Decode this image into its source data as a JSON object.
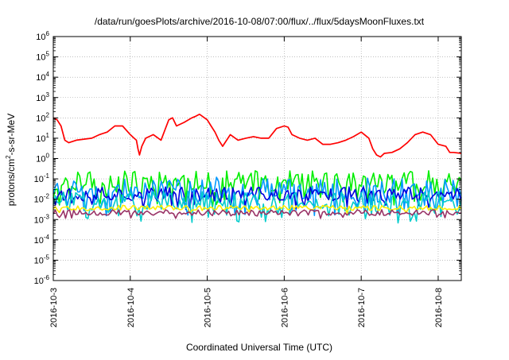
{
  "chart_data": {
    "type": "line",
    "title": "/data/run/goesPlots/archive/2016-10-08/07:00/flux/../flux/5daysMoonFluxes.txt",
    "xlabel": "Coordinated Universal Time (UTC)",
    "ylabel": {
      "base": "protons/cm",
      "sup": "2",
      "rest": "-s-sr-MeV"
    },
    "yscale": "log",
    "ylim_exp": [
      -6,
      6
    ],
    "yticks": [
      {
        "base": "10",
        "exp": "6"
      },
      {
        "base": "10",
        "exp": "5"
      },
      {
        "base": "10",
        "exp": "4"
      },
      {
        "base": "10",
        "exp": "3"
      },
      {
        "base": "10",
        "exp": "2"
      },
      {
        "base": "10",
        "exp": "1"
      },
      {
        "base": "10",
        "exp": "0"
      },
      {
        "base": "10",
        "exp": "-1"
      },
      {
        "base": "10",
        "exp": "-2"
      },
      {
        "base": "10",
        "exp": "-3"
      },
      {
        "base": "10",
        "exp": "-4"
      },
      {
        "base": "10",
        "exp": "-5"
      },
      {
        "base": "10",
        "exp": "-6"
      }
    ],
    "xlim_days": [
      0,
      5.3
    ],
    "xticks": [
      {
        "t": 0,
        "label": "2016-10-3"
      },
      {
        "t": 1,
        "label": "2016-10-4"
      },
      {
        "t": 2,
        "label": "2016-10-5"
      },
      {
        "t": 3,
        "label": "2016-10-6"
      },
      {
        "t": 4,
        "label": "2016-10-7"
      },
      {
        "t": 5,
        "label": "2016-10-8"
      }
    ],
    "grid": true,
    "series": [
      {
        "color": "#ff0000",
        "points": [
          [
            0.0,
            100
          ],
          [
            0.05,
            80
          ],
          [
            0.1,
            40
          ],
          [
            0.15,
            8
          ],
          [
            0.2,
            6
          ],
          [
            0.3,
            8
          ],
          [
            0.4,
            9
          ],
          [
            0.5,
            10
          ],
          [
            0.6,
            15
          ],
          [
            0.7,
            20
          ],
          [
            0.8,
            40
          ],
          [
            0.9,
            40
          ],
          [
            1.0,
            15
          ],
          [
            1.05,
            10
          ],
          [
            1.08,
            8
          ],
          [
            1.1,
            3
          ],
          [
            1.12,
            1.5
          ],
          [
            1.15,
            4
          ],
          [
            1.2,
            10
          ],
          [
            1.3,
            15
          ],
          [
            1.4,
            8
          ],
          [
            1.45,
            25
          ],
          [
            1.5,
            80
          ],
          [
            1.55,
            100
          ],
          [
            1.6,
            40
          ],
          [
            1.7,
            60
          ],
          [
            1.8,
            100
          ],
          [
            1.85,
            120
          ],
          [
            1.9,
            150
          ],
          [
            2.0,
            80
          ],
          [
            2.05,
            40
          ],
          [
            2.1,
            20
          ],
          [
            2.15,
            8
          ],
          [
            2.2,
            4
          ],
          [
            2.3,
            15
          ],
          [
            2.4,
            8
          ],
          [
            2.5,
            10
          ],
          [
            2.6,
            12
          ],
          [
            2.7,
            10
          ],
          [
            2.8,
            10
          ],
          [
            2.9,
            30
          ],
          [
            3.0,
            40
          ],
          [
            3.05,
            35
          ],
          [
            3.1,
            15
          ],
          [
            3.2,
            10
          ],
          [
            3.3,
            8
          ],
          [
            3.4,
            10
          ],
          [
            3.5,
            5
          ],
          [
            3.6,
            5
          ],
          [
            3.7,
            6
          ],
          [
            3.8,
            8
          ],
          [
            3.9,
            12
          ],
          [
            4.0,
            20
          ],
          [
            4.1,
            10
          ],
          [
            4.15,
            3
          ],
          [
            4.2,
            1.5
          ],
          [
            4.25,
            1.2
          ],
          [
            4.3,
            1.8
          ],
          [
            4.4,
            2
          ],
          [
            4.5,
            3
          ],
          [
            4.6,
            6
          ],
          [
            4.7,
            15
          ],
          [
            4.8,
            20
          ],
          [
            4.9,
            15
          ],
          [
            5.0,
            5
          ],
          [
            5.1,
            4
          ],
          [
            5.15,
            2
          ],
          [
            5.2,
            2
          ],
          [
            5.3,
            1.8
          ]
        ]
      },
      {
        "color": "#00ee00",
        "base": 0.08,
        "amplitude": 0.5,
        "dips": 0.35,
        "seed": 11
      },
      {
        "color": "#0099ff",
        "base": 0.035,
        "amplitude": 0.55,
        "dips": 0.35,
        "seed": 23
      },
      {
        "color": "#0000dd",
        "base": 0.018,
        "amplitude": 0.35,
        "dips": 0.2,
        "seed": 37
      },
      {
        "color": "#00cccc",
        "base": 0.009,
        "amplitude": 0.45,
        "dips": 0.3,
        "seed": 51
      },
      {
        "color": "#ffee00",
        "base": 0.0038,
        "amplitude": 0.12,
        "dips": 0.05,
        "seed": 67
      },
      {
        "color": "#993366",
        "base": 0.0022,
        "amplitude": 0.14,
        "dips": 0.08,
        "seed": 79
      }
    ]
  }
}
